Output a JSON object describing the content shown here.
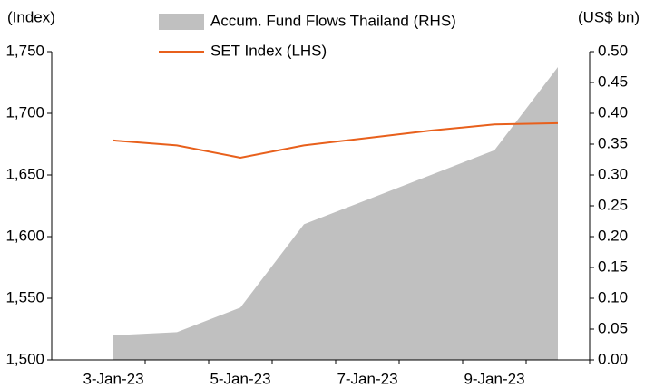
{
  "chart_data": {
    "type": "line-area",
    "y_axis_label": "(Index)",
    "y2_axis_label": "(US$ bn)",
    "categories": [
      "3-Jan-23",
      null,
      "5-Jan-23",
      null,
      "7-Jan-23",
      null,
      "9-Jan-23",
      null
    ],
    "series": [
      {
        "name": "Accum. Fund Flows Thailand (RHS)",
        "type": "area",
        "axis": "y2",
        "color": "#c0c0c0",
        "values": [
          0.04,
          0.045,
          0.085,
          0.22,
          0.26,
          0.3,
          0.34,
          0.475
        ]
      },
      {
        "name": "SET Index (LHS)",
        "type": "line",
        "color": "#e8601c",
        "values": [
          1678,
          1674,
          1664,
          1674,
          1680,
          1686,
          1691,
          1692
        ]
      }
    ],
    "ylim": [
      1500,
      1750
    ],
    "yticks": [
      {
        "value": 1500,
        "label": "1,500"
      },
      {
        "value": 1550,
        "label": "1,550"
      },
      {
        "value": 1600,
        "label": "1,600"
      },
      {
        "value": 1650,
        "label": "1,650"
      },
      {
        "value": 1700,
        "label": "1,700"
      },
      {
        "value": 1750,
        "label": "1,750"
      }
    ],
    "y2lim": [
      0,
      0.5
    ],
    "y2ticks": [
      {
        "value": 0,
        "label": "0.00"
      },
      0.05,
      {
        "value": 0.1,
        "label": "0.10"
      },
      0.15,
      {
        "value": 0.2,
        "label": "0.20"
      },
      0.25,
      {
        "value": 0.3,
        "label": "0.30"
      },
      0.35,
      {
        "value": 0.4,
        "label": "0.40"
      },
      0.45,
      {
        "value": 0.5,
        "label": "0.50"
      }
    ]
  }
}
